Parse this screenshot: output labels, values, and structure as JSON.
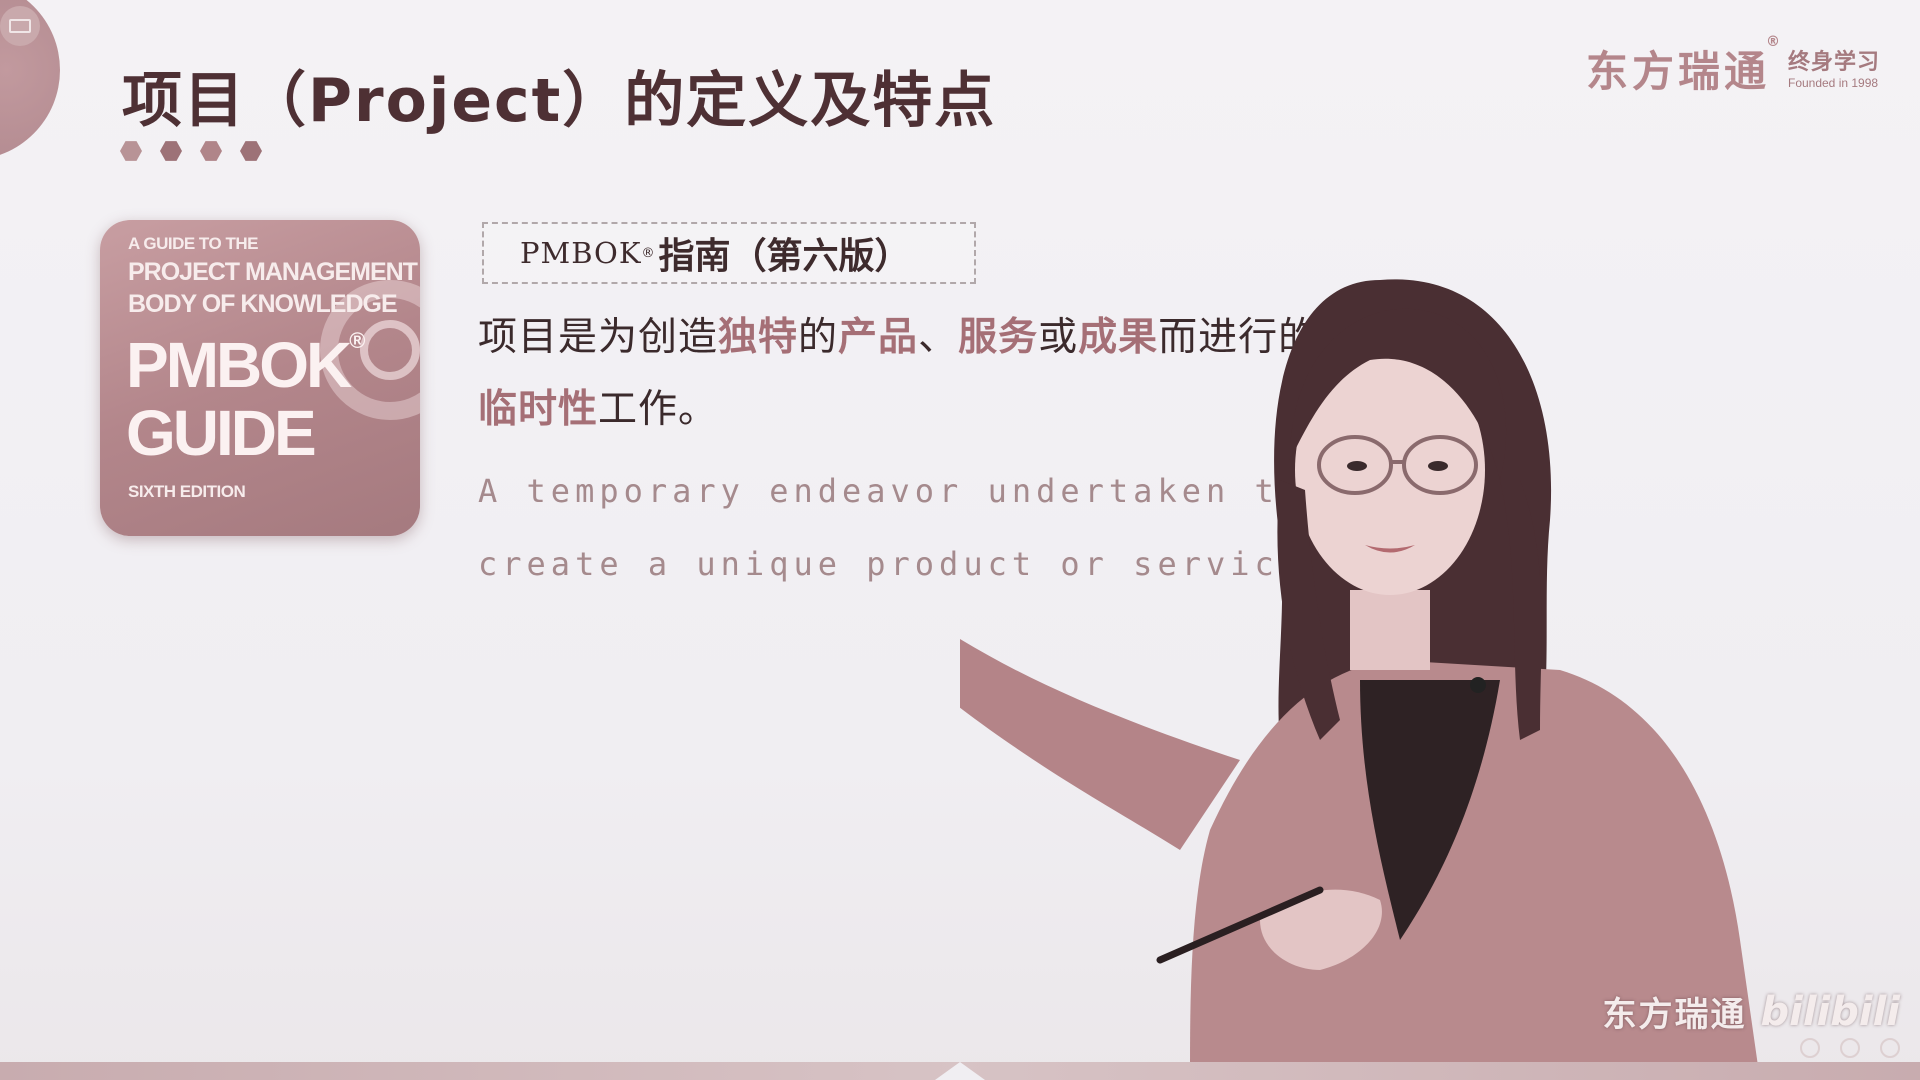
{
  "slide": {
    "title": "项目（Project）的定义及特点",
    "brand": {
      "name": "东方瑞通",
      "registered": "®",
      "sub_main": "终身学习",
      "sub_founded": "Founded in 1998"
    },
    "book_cover": {
      "line1": "A GUIDE TO THE",
      "line2": "PROJECT MANAGEMENT",
      "line3": "BODY OF KNOWLEDGE",
      "line4": "PMBOK",
      "reg": "®",
      "line5": "GUIDE",
      "line6": "SIXTH EDITION"
    },
    "label_box": {
      "latin": "PMBOK",
      "reg": "®",
      "cn": "指南（第六版）"
    },
    "definition_cn": {
      "seg1": "项目是为创造",
      "hl1": "独特",
      "seg2": "的",
      "hl2": "产品",
      "seg3": "、",
      "hl3": "服务",
      "seg4": "或",
      "hl4": "成果",
      "seg5": "而进行的",
      "hl5": "临时性",
      "seg6": "工作。"
    },
    "definition_en": "A temporary endeavor undertaken to create a unique product or service.",
    "watermark": {
      "name": "东方瑞通",
      "logo": "bilibili"
    }
  },
  "colors": {
    "title": "#4e3034",
    "highlight": "#a56f76",
    "english_text": "#a58a8d",
    "brand": "#b4868b"
  }
}
